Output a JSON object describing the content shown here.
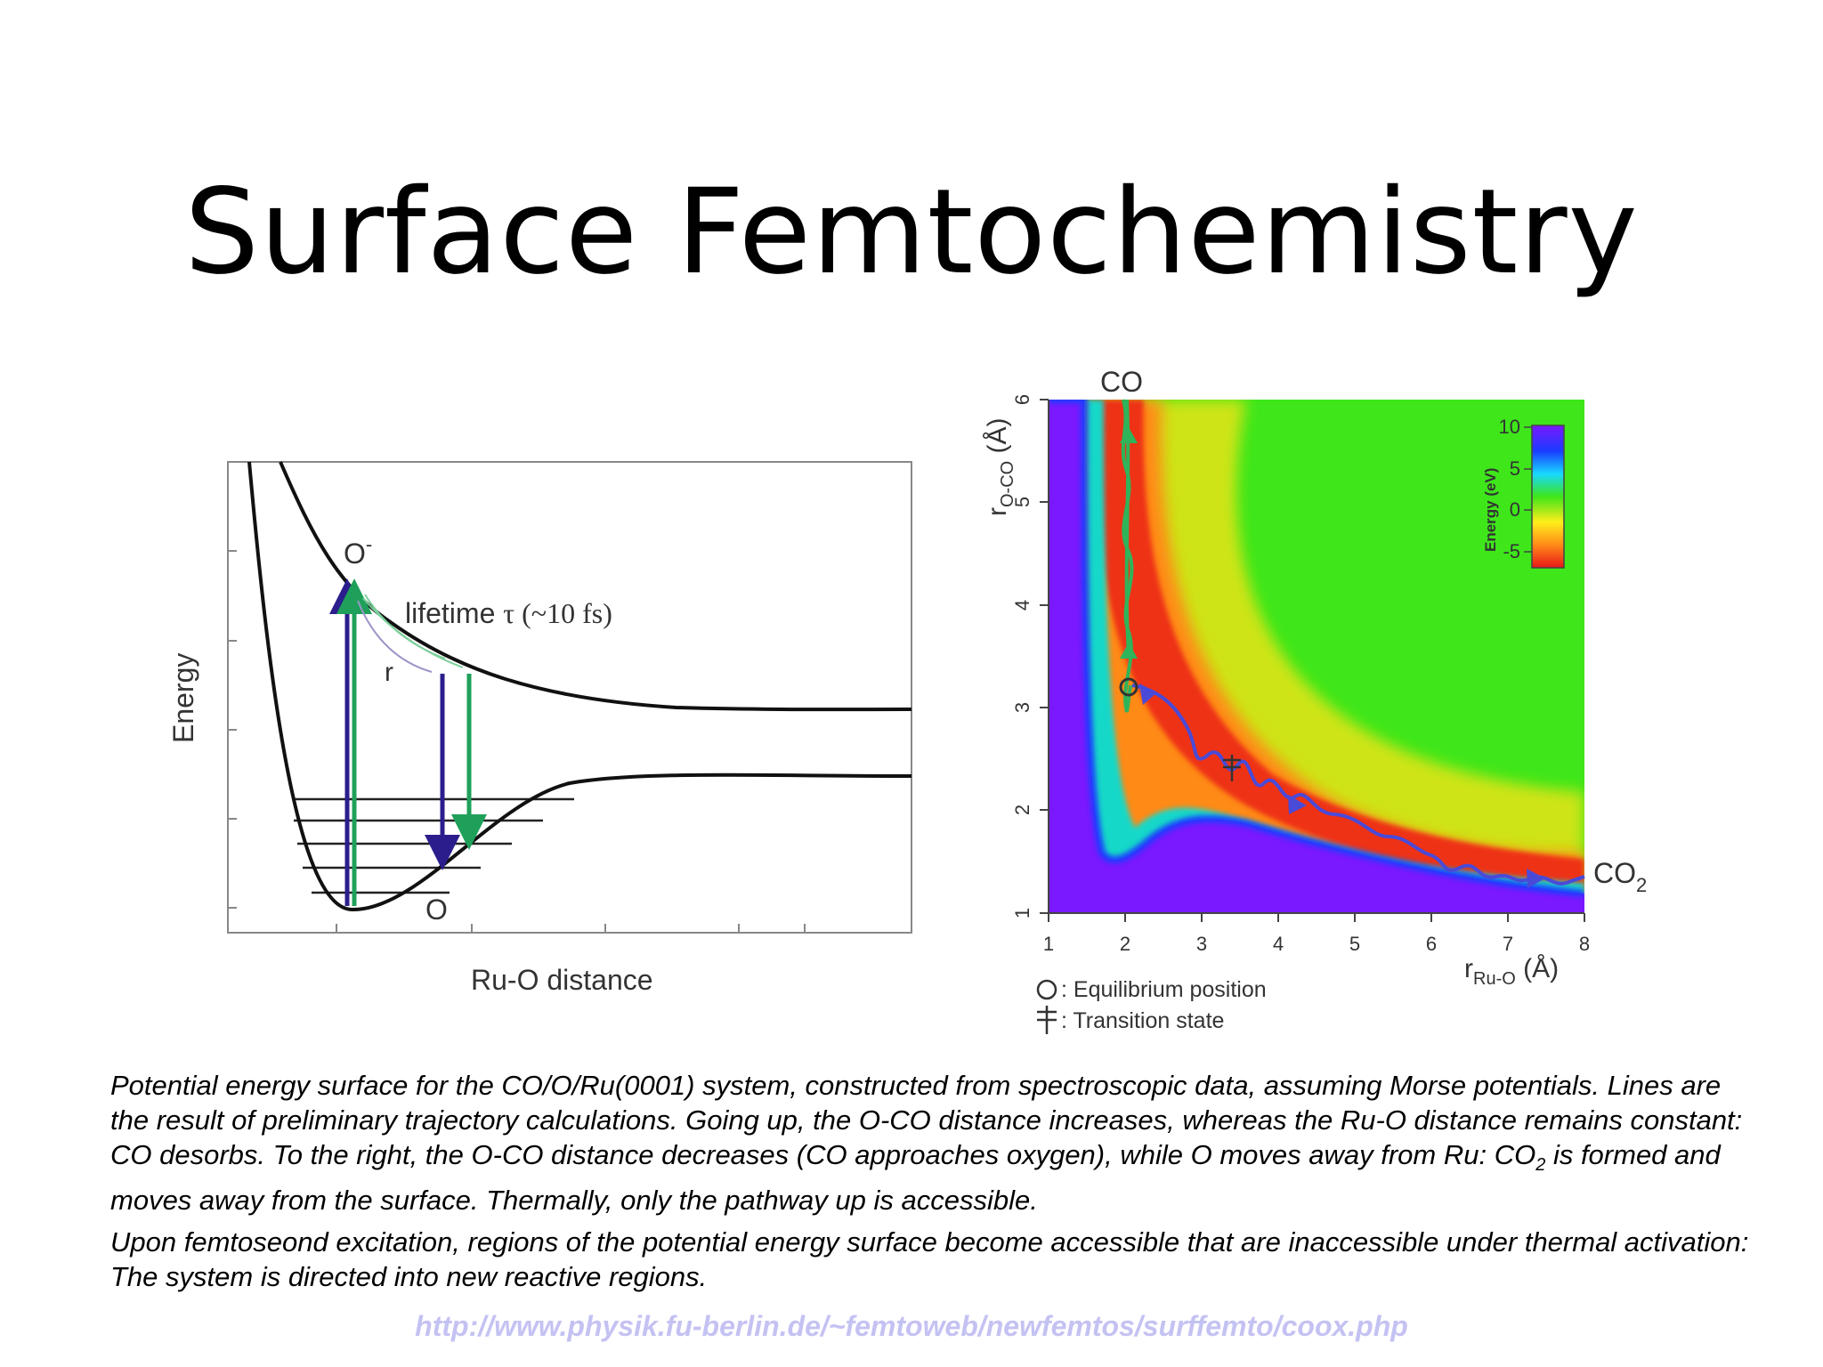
{
  "slide": {
    "title": "Surface Femtochemistry",
    "caption_part1": "Potential energy surface for the CO/O/Ru(0001) system, constructed from spectroscopic data, assuming Morse potentials. Lines are the result of preliminary trajectory calculations. Going up, the O-CO distance increases, whereas the Ru-O distance remains constant: CO desorbs. To the right, the O-CO distance decreases (CO approaches oxygen), while O moves away from Ru: CO",
    "caption_sub": "2",
    "caption_part2": " is formed and moves away from the surface. Thermally, only the pathway up is accessible.",
    "caption_line2": "Upon femtoseond excitation, regions of the potential energy surface become accessible that are inaccessible under thermal activation: The system is directed into new reactive regions.",
    "url": "http://www.physik.fu-berlin.de/~femtoweb/newfemtos/surffemto/coox.php"
  },
  "left_diagram": {
    "y_label": "Energy",
    "x_label": "Ru-O distance",
    "upper_state": "O",
    "upper_state_sup": "-",
    "lower_state": "O",
    "lifetime_prefix": "lifetime ",
    "lifetime_symbol": "τ",
    "lifetime_value": " (~10 fs)",
    "r_label": "r",
    "colors": {
      "blue_arrow": "#2b1e8c",
      "green_arrow": "#1fa05a"
    }
  },
  "right_diagram": {
    "top_label": "CO",
    "right_label": "CO",
    "right_label_sub": "2",
    "y_label": "r",
    "y_label_sub": "O-CO",
    "y_label_unit": " (Å)",
    "x_label": "r",
    "x_label_sub": "Ru-O",
    "x_label_unit": " (Å)",
    "x_ticks": [
      "1",
      "2",
      "3",
      "4",
      "5",
      "6",
      "7",
      "8"
    ],
    "y_ticks": [
      "1",
      "2",
      "3",
      "4",
      "5",
      "6"
    ],
    "colorbar_label": "Energy (eV)",
    "colorbar_ticks": [
      "10",
      "5",
      "0",
      "-5"
    ],
    "legend_equilibrium": ": Equilibrium position",
    "legend_transition": ": Transition state",
    "colors": {
      "background": "#3ee61a",
      "low": "#ee3318",
      "floor": "#7a18ff",
      "trajectory_co": "#2fb45a",
      "trajectory_co2": "#4a4ad8"
    }
  }
}
